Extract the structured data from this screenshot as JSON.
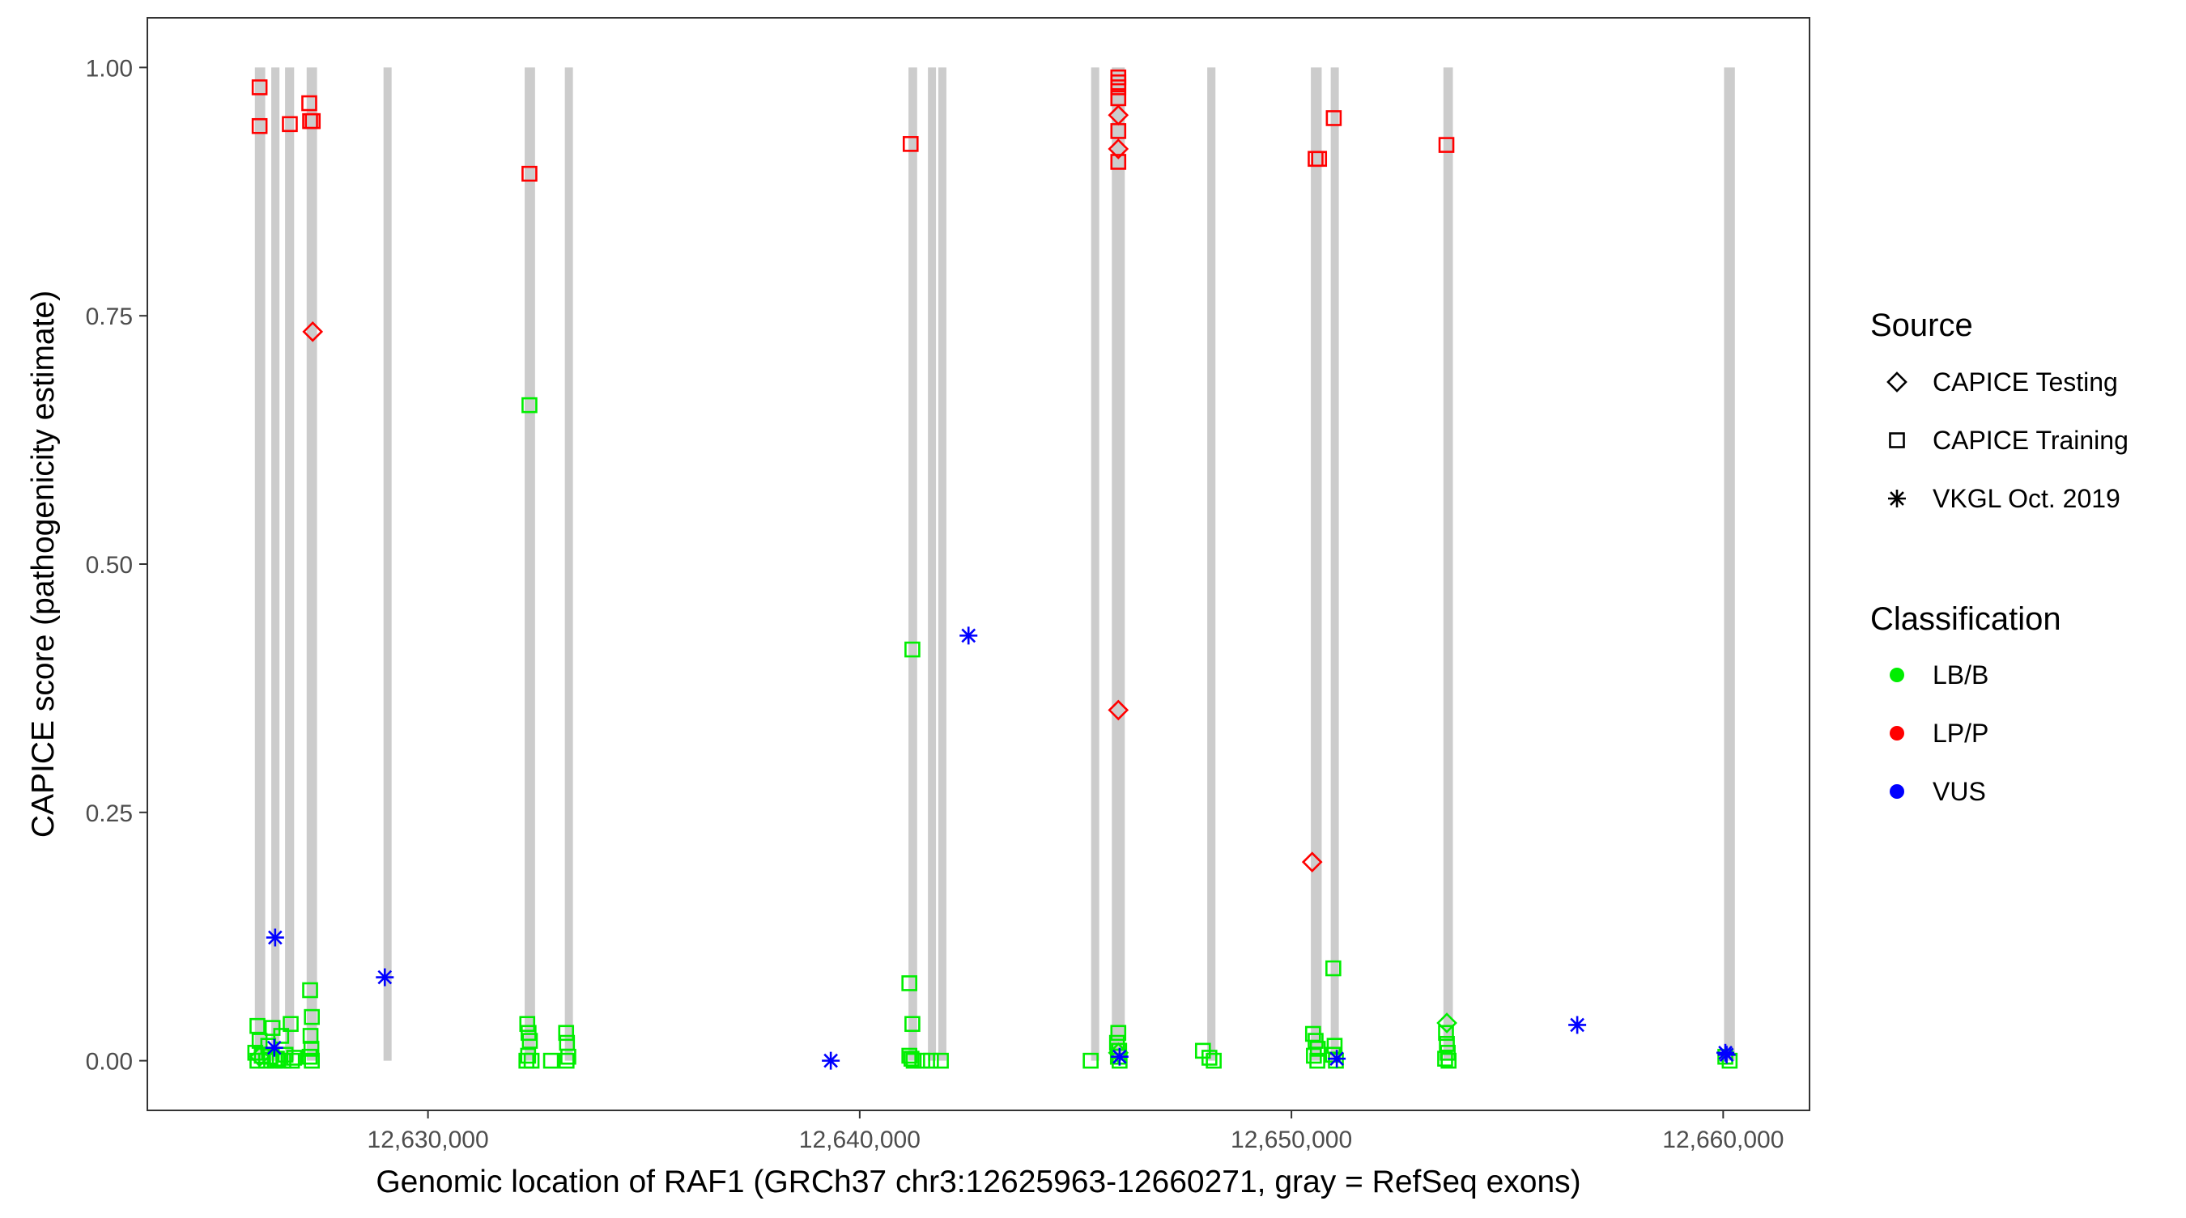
{
  "chart_data": {
    "type": "scatter",
    "xlabel": "Genomic location of RAF1 (GRCh37 chr3:12625963-12660271, gray = RefSeq exons)",
    "ylabel": "CAPICE score (pathogenicity estimate)",
    "xlim": [
      12623500,
      12662000
    ],
    "ylim": [
      -0.05,
      1.05
    ],
    "x_ticks": [
      12630000,
      12640000,
      12650000,
      12660000
    ],
    "x_tick_labels": [
      "12,630,000",
      "12,640,000",
      "12,650,000",
      "12,660,000"
    ],
    "y_ticks": [
      0,
      0.25,
      0.5,
      0.75,
      1
    ],
    "y_tick_labels": [
      "0.00",
      "0.25",
      "0.50",
      "0.75",
      "1.00"
    ],
    "grid": false,
    "legend_position": "right",
    "legend": {
      "source_title": "Source",
      "source_items": [
        {
          "label": "CAPICE Testing",
          "shape": "diamond"
        },
        {
          "label": "CAPICE Training",
          "shape": "square"
        },
        {
          "label": "VKGL Oct. 2019",
          "shape": "asterisk"
        }
      ],
      "class_title": "Classification",
      "class_items": [
        {
          "label": "LB/B",
          "color": "#00ee00"
        },
        {
          "label": "LP/P",
          "color": "#ff0000"
        },
        {
          "label": "VUS",
          "color": "#0000ff"
        }
      ]
    },
    "exons": [
      {
        "start": 12625990,
        "end": 12626230
      },
      {
        "start": 12626370,
        "end": 12626560
      },
      {
        "start": 12626690,
        "end": 12626900
      },
      {
        "start": 12627190,
        "end": 12627430
      },
      {
        "start": 12628970,
        "end": 12629050
      },
      {
        "start": 12632240,
        "end": 12632480
      },
      {
        "start": 12633170,
        "end": 12633330
      },
      {
        "start": 12641130,
        "end": 12641330
      },
      {
        "start": 12641580,
        "end": 12641760
      },
      {
        "start": 12641820,
        "end": 12641940
      },
      {
        "start": 12645360,
        "end": 12645460
      },
      {
        "start": 12645840,
        "end": 12646140
      },
      {
        "start": 12648050,
        "end": 12648240
      },
      {
        "start": 12650450,
        "end": 12650700
      },
      {
        "start": 12650910,
        "end": 12651070
      },
      {
        "start": 12653520,
        "end": 12653740
      },
      {
        "start": 12660020,
        "end": 12660271
      }
    ],
    "series": [
      {
        "classification": "LP/P",
        "source": "CAPICE Training",
        "color": "#ff0000",
        "shape": "square",
        "points": [
          {
            "x": 12626100,
            "y": 0.98
          },
          {
            "x": 12626100,
            "y": 0.941
          },
          {
            "x": 12626800,
            "y": 0.943
          },
          {
            "x": 12627250,
            "y": 0.964
          },
          {
            "x": 12627270,
            "y": 0.946
          },
          {
            "x": 12627330,
            "y": 0.946
          },
          {
            "x": 12632350,
            "y": 0.893
          },
          {
            "x": 12641180,
            "y": 0.923
          },
          {
            "x": 12645990,
            "y": 0.99
          },
          {
            "x": 12645990,
            "y": 0.985
          },
          {
            "x": 12645990,
            "y": 0.98
          },
          {
            "x": 12645990,
            "y": 0.969
          },
          {
            "x": 12645990,
            "y": 0.936
          },
          {
            "x": 12645990,
            "y": 0.905
          },
          {
            "x": 12650560,
            "y": 0.908
          },
          {
            "x": 12650640,
            "y": 0.908
          },
          {
            "x": 12650980,
            "y": 0.949
          },
          {
            "x": 12653590,
            "y": 0.922
          }
        ]
      },
      {
        "classification": "LP/P",
        "source": "CAPICE Testing",
        "color": "#ff0000",
        "shape": "diamond",
        "points": [
          {
            "x": 12627330,
            "y": 0.734
          },
          {
            "x": 12645990,
            "y": 0.952
          },
          {
            "x": 12645990,
            "y": 0.918
          },
          {
            "x": 12645990,
            "y": 0.353
          },
          {
            "x": 12650480,
            "y": 0.2
          }
        ]
      },
      {
        "classification": "LB/B",
        "source": "CAPICE Training",
        "color": "#00ee00",
        "shape": "square",
        "points": [
          {
            "x": 12632350,
            "y": 0.66
          },
          {
            "x": 12641220,
            "y": 0.414
          },
          {
            "x": 12641150,
            "y": 0.078
          },
          {
            "x": 12641220,
            "y": 0.037
          },
          {
            "x": 12627270,
            "y": 0.071
          },
          {
            "x": 12627310,
            "y": 0.044
          },
          {
            "x": 12650970,
            "y": 0.093
          },
          {
            "x": 12626050,
            "y": 0.035
          },
          {
            "x": 12626400,
            "y": 0.033
          },
          {
            "x": 12626820,
            "y": 0.037
          },
          {
            "x": 12626100,
            "y": 0.02
          },
          {
            "x": 12626300,
            "y": 0.015
          },
          {
            "x": 12626600,
            "y": 0.025
          },
          {
            "x": 12626000,
            "y": 0.008
          },
          {
            "x": 12626150,
            "y": 0.005
          },
          {
            "x": 12626350,
            "y": 0.004
          },
          {
            "x": 12626500,
            "y": 0.002
          },
          {
            "x": 12626700,
            "y": 0.006
          },
          {
            "x": 12626900,
            "y": 0.003
          },
          {
            "x": 12626050,
            "y": 0.0
          },
          {
            "x": 12626250,
            "y": 0.0
          },
          {
            "x": 12626450,
            "y": 0.0
          },
          {
            "x": 12626650,
            "y": 0.0
          },
          {
            "x": 12626850,
            "y": 0.0
          },
          {
            "x": 12627280,
            "y": 0.025
          },
          {
            "x": 12627300,
            "y": 0.012
          },
          {
            "x": 12627260,
            "y": 0.004
          },
          {
            "x": 12627310,
            "y": 0.0
          },
          {
            "x": 12632300,
            "y": 0.037
          },
          {
            "x": 12632330,
            "y": 0.028
          },
          {
            "x": 12632360,
            "y": 0.02
          },
          {
            "x": 12632320,
            "y": 0.005
          },
          {
            "x": 12632400,
            "y": 0.0
          },
          {
            "x": 12632280,
            "y": 0.0
          },
          {
            "x": 12632850,
            "y": 0.0
          },
          {
            "x": 12633200,
            "y": 0.028
          },
          {
            "x": 12633220,
            "y": 0.018
          },
          {
            "x": 12633250,
            "y": 0.004
          },
          {
            "x": 12633210,
            "y": 0.0
          },
          {
            "x": 12641150,
            "y": 0.005
          },
          {
            "x": 12641200,
            "y": 0.002
          },
          {
            "x": 12641250,
            "y": 0.0
          },
          {
            "x": 12641450,
            "y": 0.0
          },
          {
            "x": 12641650,
            "y": 0.0
          },
          {
            "x": 12641880,
            "y": 0.0
          },
          {
            "x": 12645350,
            "y": 0.0
          },
          {
            "x": 12645990,
            "y": 0.028
          },
          {
            "x": 12645960,
            "y": 0.018
          },
          {
            "x": 12646010,
            "y": 0.01
          },
          {
            "x": 12645980,
            "y": 0.004
          },
          {
            "x": 12646020,
            "y": 0.0
          },
          {
            "x": 12647950,
            "y": 0.01
          },
          {
            "x": 12648100,
            "y": 0.003
          },
          {
            "x": 12648200,
            "y": 0.0
          },
          {
            "x": 12650500,
            "y": 0.027
          },
          {
            "x": 12650560,
            "y": 0.02
          },
          {
            "x": 12650610,
            "y": 0.012
          },
          {
            "x": 12650520,
            "y": 0.005
          },
          {
            "x": 12650600,
            "y": 0.0
          },
          {
            "x": 12651000,
            "y": 0.015
          },
          {
            "x": 12650960,
            "y": 0.006
          },
          {
            "x": 12651030,
            "y": 0.0
          },
          {
            "x": 12653580,
            "y": 0.028
          },
          {
            "x": 12653600,
            "y": 0.017
          },
          {
            "x": 12653620,
            "y": 0.008
          },
          {
            "x": 12653560,
            "y": 0.002
          },
          {
            "x": 12653640,
            "y": 0.0
          },
          {
            "x": 12660050,
            "y": 0.004
          },
          {
            "x": 12660150,
            "y": 0.0
          }
        ]
      },
      {
        "classification": "LB/B",
        "source": "CAPICE Testing",
        "color": "#00ee00",
        "shape": "diamond",
        "points": [
          {
            "x": 12653600,
            "y": 0.038
          },
          {
            "x": 12626100,
            "y": 0.004
          },
          {
            "x": 12645990,
            "y": 0.008
          }
        ]
      },
      {
        "classification": "VUS",
        "source": "VKGL Oct. 2019",
        "color": "#0000ff",
        "shape": "asterisk",
        "points": [
          {
            "x": 12626460,
            "y": 0.124
          },
          {
            "x": 12626440,
            "y": 0.013
          },
          {
            "x": 12629000,
            "y": 0.084
          },
          {
            "x": 12639330,
            "y": 0.0
          },
          {
            "x": 12642520,
            "y": 0.428
          },
          {
            "x": 12646020,
            "y": 0.004
          },
          {
            "x": 12651050,
            "y": 0.002
          },
          {
            "x": 12656620,
            "y": 0.036
          },
          {
            "x": 12660050,
            "y": 0.008
          },
          {
            "x": 12660080,
            "y": 0.006
          }
        ]
      }
    ]
  }
}
